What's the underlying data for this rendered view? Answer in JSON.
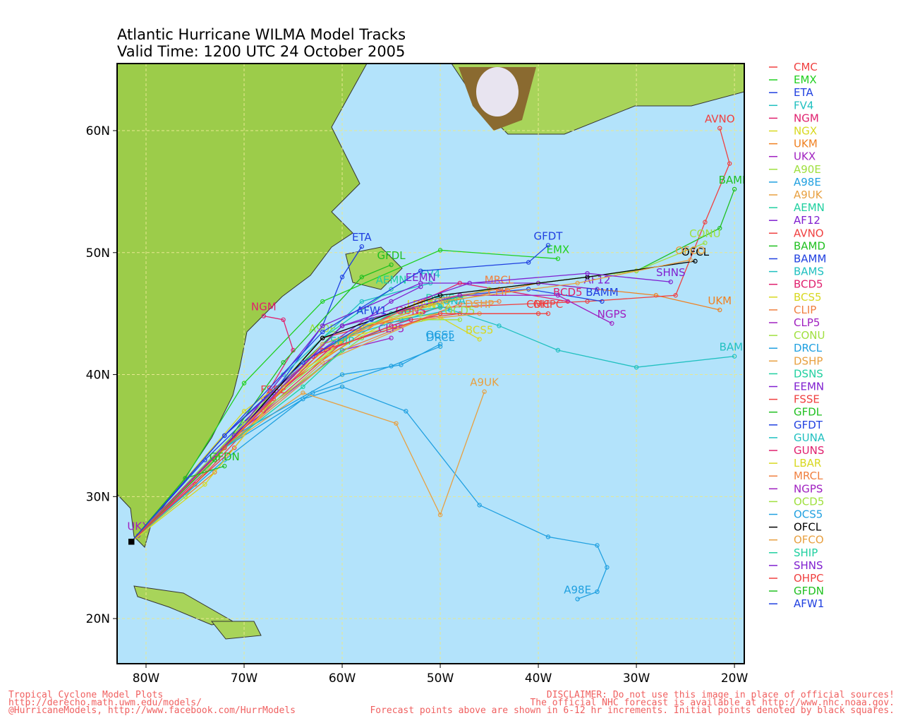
{
  "chart_data": {
    "type": "track_map",
    "title": "Atlantic Hurricane WILMA Model Tracks",
    "subtitle": "Valid Time: 1200 UTC 24 October 2005",
    "xlim": [
      -82.95,
      -19
    ],
    "ylim": [
      16.3,
      65.5
    ],
    "xticks": [
      {
        "value": -80,
        "label": "80W"
      },
      {
        "value": -70,
        "label": "70W"
      },
      {
        "value": -60,
        "label": "60W"
      },
      {
        "value": -50,
        "label": "50W"
      },
      {
        "value": -40,
        "label": "40W"
      },
      {
        "value": -30,
        "label": "30W"
      },
      {
        "value": -20,
        "label": "20W"
      }
    ],
    "yticks": [
      {
        "value": 20,
        "label": "20N"
      },
      {
        "value": 30,
        "label": "30N"
      },
      {
        "value": 40,
        "label": "40N"
      },
      {
        "value": 50,
        "label": "50N"
      },
      {
        "value": 60,
        "label": "60N"
      }
    ],
    "grid": true,
    "series": [
      {
        "name": "CMC",
        "color": "#f04040",
        "x": [
          -81.5,
          -75,
          -68,
          -58,
          -48,
          -40
        ],
        "y": [
          26.3,
          31,
          37,
          44,
          45,
          45
        ]
      },
      {
        "name": "EMX",
        "color": "#20d020",
        "x": [
          -81.5,
          -76,
          -70,
          -62,
          -50,
          -38
        ],
        "y": [
          26.3,
          31.5,
          39.3,
          46,
          50.2,
          49.5
        ]
      },
      {
        "name": "ETA",
        "color": "#2040e0",
        "x": [
          -81.5,
          -74,
          -67,
          -62,
          -60,
          -58
        ],
        "y": [
          26.3,
          33,
          38.5,
          44,
          48,
          50.5
        ]
      },
      {
        "name": "FV4",
        "color": "#20c0c0",
        "x": [
          -81.5,
          -73,
          -66,
          -58,
          -51
        ],
        "y": [
          26.3,
          33,
          40,
          46,
          47.5
        ]
      },
      {
        "name": "NGM",
        "color": "#e0206e",
        "x": [
          -81.5,
          -74,
          -68,
          -65,
          -66,
          -68
        ],
        "y": [
          26.3,
          32,
          38,
          42,
          44.5,
          44.8
        ]
      },
      {
        "name": "NGX",
        "color": "#d8d820",
        "x": [
          -81.5,
          -73,
          -65,
          -55,
          -50
        ],
        "y": [
          26.3,
          33,
          40,
          44.5,
          45
        ]
      },
      {
        "name": "UKM",
        "color": "#f08020",
        "x": [
          -81.5,
          -73,
          -66,
          -55,
          -40,
          -28,
          -21.5
        ],
        "y": [
          26.3,
          32,
          39,
          45,
          47.5,
          46.5,
          45.3
        ]
      },
      {
        "name": "UKX",
        "color": "#a020c0",
        "x": [
          -81.5,
          -80.8
        ],
        "y": [
          26.3,
          26.8
        ]
      },
      {
        "name": "A90E",
        "color": "#a0e040",
        "x": [
          -81.5,
          -76,
          -70,
          -62
        ],
        "y": [
          26.3,
          30,
          36,
          43
        ]
      },
      {
        "name": "A98E",
        "color": "#20a0e0",
        "x": [
          -81.5,
          -72,
          -64,
          -60,
          -53.5,
          -46,
          -39,
          -34,
          -33,
          -34,
          -36
        ],
        "y": [
          26.3,
          33,
          38,
          39,
          37,
          29.3,
          26.7,
          26,
          24.2,
          22.2,
          21.6
        ]
      },
      {
        "name": "A9UK",
        "color": "#e8a040",
        "x": [
          -81.5,
          -72,
          -64,
          -54.5,
          -50,
          -45.5
        ],
        "y": [
          26.3,
          34,
          38.5,
          36,
          28.5,
          38.6
        ]
      },
      {
        "name": "AEMN",
        "color": "#20d0a0",
        "x": [
          -81.5,
          -72,
          -62,
          -55
        ],
        "y": [
          26.3,
          34,
          43,
          47
        ]
      },
      {
        "name": "AF12",
        "color": "#8020d0",
        "x": [
          -81.5,
          -71,
          -62,
          -52,
          -40,
          -34
        ],
        "y": [
          26.3,
          35,
          44,
          47.5,
          47.5,
          47
        ]
      },
      {
        "name": "AVNO",
        "color": "#f04040",
        "x": [
          -81.5,
          -72,
          -62,
          -50,
          -35,
          -26,
          -23,
          -20.5,
          -21.5
        ],
        "y": [
          26.3,
          34,
          43,
          45.5,
          46,
          46.5,
          52.5,
          57.3,
          60.2
        ]
      },
      {
        "name": "BAMD",
        "color": "#20c020",
        "x": [
          -81.5,
          -72,
          -60,
          -45,
          -30,
          -21.5,
          -20
        ],
        "y": [
          26.3,
          35,
          44,
          47,
          48.5,
          52,
          55.2
        ]
      },
      {
        "name": "BAMM",
        "color": "#2040e0",
        "x": [
          -81.5,
          -71,
          -60,
          -48,
          -41,
          -33.5
        ],
        "y": [
          26.3,
          35,
          44,
          46.5,
          47,
          46
        ]
      },
      {
        "name": "BAMS",
        "color": "#20c0c0",
        "x": [
          -81.5,
          -70,
          -58,
          -50,
          -44,
          -38,
          -30,
          -20
        ],
        "y": [
          26.3,
          36,
          43,
          45.6,
          44,
          42,
          40.6,
          41.5
        ]
      },
      {
        "name": "BCD5",
        "color": "#e0206e",
        "x": [
          -81.5,
          -70,
          -60,
          -48,
          -37
        ],
        "y": [
          26.3,
          36,
          43,
          47.5,
          46
        ]
      },
      {
        "name": "BCS5",
        "color": "#d8d820",
        "x": [
          -81.5,
          -70,
          -60,
          -50,
          -46
        ],
        "y": [
          26.3,
          37,
          43,
          44.7,
          42.9
        ]
      },
      {
        "name": "CLIP",
        "color": "#f08040",
        "x": [
          -81.5,
          -72,
          -60,
          -48,
          -44
        ],
        "y": [
          26.3,
          34,
          42,
          45.8,
          46
        ]
      },
      {
        "name": "CLP5",
        "color": "#a020c0",
        "x": [
          -81.5,
          -71,
          -60,
          -55
        ],
        "y": [
          26.3,
          35,
          42,
          43
        ]
      },
      {
        "name": "CONU",
        "color": "#a0e040",
        "x": [
          -81.5,
          -70,
          -58,
          -45,
          -30,
          -23
        ],
        "y": [
          26.3,
          36,
          44,
          47,
          48.5,
          50.8
        ]
      },
      {
        "name": "DRCL",
        "color": "#20a0e0",
        "x": [
          -81.5,
          -72,
          -63,
          -55,
          -50
        ],
        "y": [
          26.3,
          34,
          38.5,
          40.7,
          42.3
        ]
      },
      {
        "name": "DSHP",
        "color": "#e8a040",
        "x": [
          -81.5,
          -72,
          -62,
          -52,
          -46
        ],
        "y": [
          26.3,
          34,
          41,
          44.5,
          45
        ]
      },
      {
        "name": "DSNS",
        "color": "#20d0a0",
        "x": [
          -81.5,
          -72,
          -62,
          -55,
          -50
        ],
        "y": [
          26.3,
          34,
          42,
          45,
          45.5
        ]
      },
      {
        "name": "EEMN",
        "color": "#8020d0",
        "x": [
          -81.5,
          -72,
          -63,
          -55,
          -52
        ],
        "y": [
          26.3,
          35,
          41.5,
          46,
          47.2
        ]
      },
      {
        "name": "FSSE",
        "color": "#f04040",
        "x": [
          -81.5,
          -71,
          -68,
          -67
        ],
        "y": [
          26.3,
          34,
          37,
          38
        ]
      },
      {
        "name": "GFDL",
        "color": "#20c020",
        "x": [
          -81.5,
          -73,
          -66,
          -58,
          -55
        ],
        "y": [
          26.3,
          33,
          41,
          48,
          49
        ]
      },
      {
        "name": "GFDT",
        "color": "#2040e0",
        "x": [
          -81.5,
          -72,
          -62,
          -52,
          -41,
          -39
        ],
        "y": [
          26.3,
          35,
          43.5,
          48.5,
          49.2,
          50.6
        ]
      },
      {
        "name": "GUNA",
        "color": "#20c0c0",
        "x": [
          -81.5,
          -72,
          -62,
          -54,
          -49
        ],
        "y": [
          26.3,
          34,
          42.5,
          44.5,
          45.3
        ]
      },
      {
        "name": "GUNS",
        "color": "#e0206e",
        "x": [
          -81.5,
          -72,
          -63,
          -55,
          -53
        ],
        "y": [
          26.3,
          34,
          41.5,
          44,
          44.5
        ]
      },
      {
        "name": "LBAR",
        "color": "#d8d820",
        "x": [
          -81.5,
          -74,
          -66,
          -58,
          -52
        ],
        "y": [
          26.3,
          31,
          39,
          44,
          45
        ]
      },
      {
        "name": "MRCL",
        "color": "#f08040",
        "x": [
          -81.5,
          -72,
          -62,
          -52,
          -44
        ],
        "y": [
          26.3,
          34,
          42,
          46,
          47
        ]
      },
      {
        "name": "NGPS",
        "color": "#a020c0",
        "x": [
          -81.5,
          -71,
          -60,
          -48,
          -38,
          -32.5
        ],
        "y": [
          26.3,
          35,
          44,
          46.5,
          46.5,
          44.2
        ]
      },
      {
        "name": "OCD5",
        "color": "#a0e040",
        "x": [
          -81.5,
          -70,
          -58,
          -52,
          -48
        ],
        "y": [
          26.3,
          36,
          43,
          44.5,
          44.5
        ]
      },
      {
        "name": "OCS5",
        "color": "#20a0e0",
        "x": [
          -81.5,
          -71,
          -60,
          -54,
          -50
        ],
        "y": [
          26.3,
          35,
          40,
          40.8,
          42.5
        ]
      },
      {
        "name": "OFCL",
        "color": "#000000",
        "x": [
          -81.5,
          -72,
          -62,
          -50,
          -35,
          -24
        ],
        "y": [
          26.3,
          34,
          43,
          46.5,
          48,
          49.3
        ]
      },
      {
        "name": "OFCO",
        "color": "#e8a040",
        "x": [
          -81.5,
          -72,
          -62,
          -50,
          -36,
          -24.5
        ],
        "y": [
          26.3,
          34,
          42.5,
          46,
          47.5,
          49.4
        ]
      },
      {
        "name": "SHIP",
        "color": "#20d0a0",
        "x": [
          -81.5,
          -72,
          -64,
          -60
        ],
        "y": [
          26.3,
          34,
          39,
          42
        ]
      },
      {
        "name": "SHNS",
        "color": "#8020d0",
        "x": [
          -81.5,
          -71,
          -60,
          -47,
          -35,
          -26.5
        ],
        "y": [
          26.3,
          35,
          44,
          47.5,
          48.3,
          47.6
        ]
      },
      {
        "name": "OHPC",
        "color": "#f04040",
        "x": [
          -81.5,
          -72,
          -62,
          -50,
          -39
        ],
        "y": [
          26.3,
          34,
          42,
          45,
          45
        ]
      },
      {
        "name": "GFDN",
        "color": "#20c020",
        "x": [
          -81.5,
          -76,
          -72
        ],
        "y": [
          26.3,
          31.5,
          32.5
        ]
      },
      {
        "name": "AFW1",
        "color": "#2040e0",
        "x": [
          -81.5,
          -72,
          -64,
          -57
        ],
        "y": [
          26.3,
          35,
          41,
          44.5
        ]
      }
    ],
    "footer_left": [
      "Tropical Cyclone Model Plots",
      "http://derecho.math.uwm.edu/models/",
      "@HurricaneModels, http://www.facebook.com/HurrModels"
    ],
    "footer_right": [
      "DISCLAIMER: Do not use this image in place of official sources!",
      "The official NHC forecast is available at http://www.nhc.noaa.gov.",
      "Forecast points above are shown in 6-12 hr increments. Initial points denoted by black squares."
    ]
  }
}
